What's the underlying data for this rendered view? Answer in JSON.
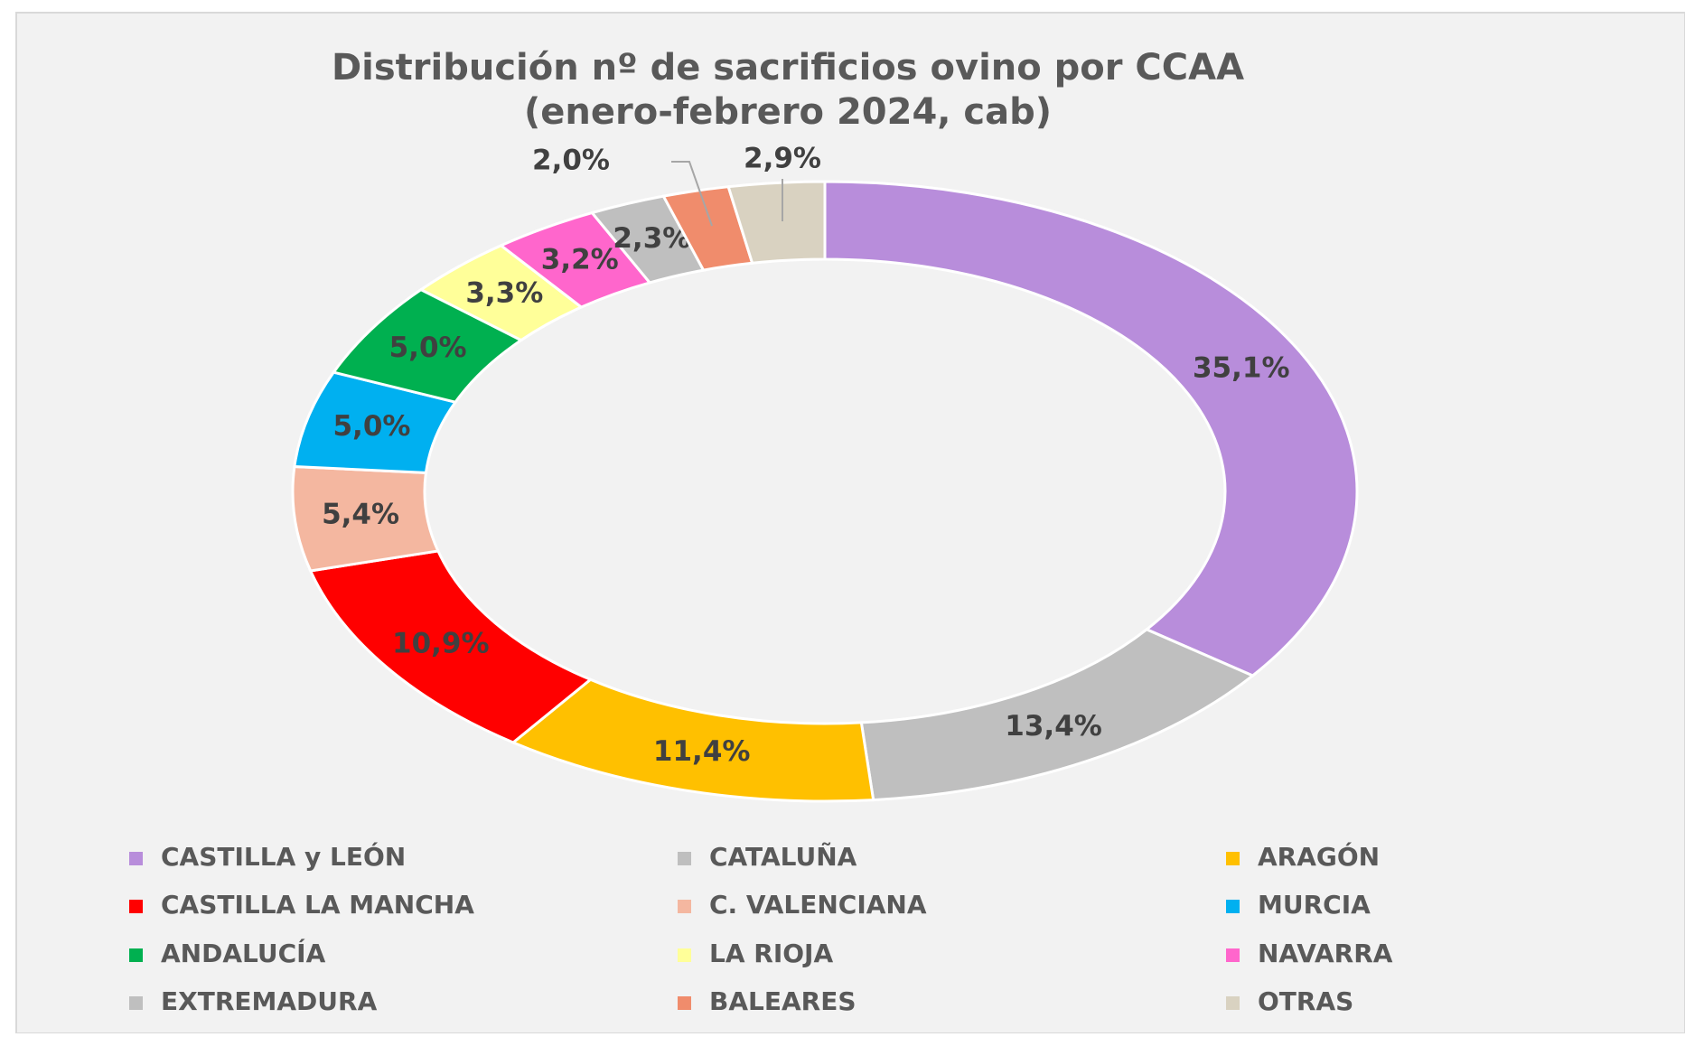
{
  "chart_data": {
    "type": "donut",
    "title": [
      "Distribución  nº de sacrificios ovino por CCAA",
      "(enero-febrero 2024, cab)"
    ],
    "categories": [
      "CASTILLA y LEÓN",
      "CATALUÑA",
      "ARAGÓN",
      "CASTILLA LA MANCHA",
      "C. VALENCIANA",
      "MURCIA",
      "ANDALUCÍA",
      "LA RIOJA",
      "NAVARRA",
      "EXTREMADURA",
      "BALEARES",
      "OTRAS"
    ],
    "values": [
      35.1,
      13.4,
      11.4,
      10.9,
      5.4,
      5.0,
      5.0,
      3.3,
      3.2,
      2.3,
      2.0,
      2.9
    ],
    "value_labels": [
      "35,1%",
      "13,4%",
      "11,4%",
      "10,9%",
      "5,4%",
      "5,0%",
      "5,0%",
      "3,3%",
      "3,2%",
      "2,3%",
      "2,0%",
      "2,9%"
    ],
    "colors": [
      "#b88ddb",
      "#bfbfbf",
      "#ffc000",
      "#ff0000",
      "#f4b7a0",
      "#00b0f0",
      "#00b050",
      "#ffff99",
      "#ff66cc",
      "#bfbfbf",
      "#f08c6c",
      "#d9d2c1"
    ],
    "legend": "bottom"
  }
}
